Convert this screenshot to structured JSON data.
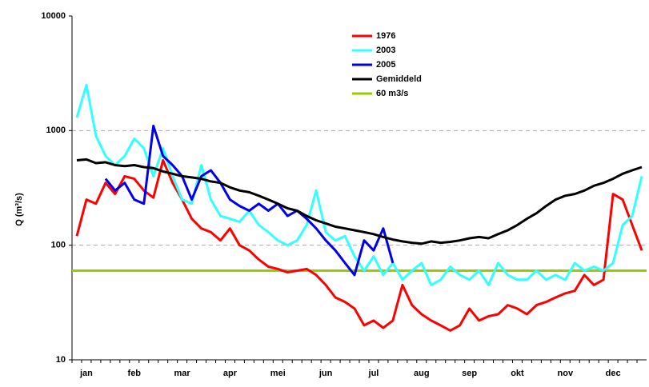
{
  "chart_data": {
    "type": "line",
    "y_label": "Q (m³/s)",
    "log_y": true,
    "ylim": [
      10,
      10000
    ],
    "yticks": [
      10,
      100,
      1000,
      10000
    ],
    "grid": true,
    "legend_position": "top",
    "categories": [
      null,
      "jan",
      null,
      null,
      null,
      null,
      "feb",
      null,
      null,
      null,
      null,
      "mar",
      null,
      null,
      null,
      null,
      "apr",
      null,
      null,
      null,
      null,
      "mei",
      null,
      null,
      null,
      null,
      "jun",
      null,
      null,
      null,
      null,
      "jul",
      null,
      null,
      null,
      null,
      "aug",
      null,
      null,
      null,
      null,
      "sep",
      null,
      null,
      null,
      null,
      "okt",
      null,
      null,
      null,
      null,
      "nov",
      null,
      null,
      null,
      null,
      "dec",
      null,
      null,
      null
    ],
    "series": [
      {
        "name": "1976",
        "color": "#ff0000",
        "values": [
          120,
          250,
          230,
          350,
          280,
          400,
          380,
          300,
          260,
          550,
          350,
          250,
          170,
          140,
          130,
          110,
          140,
          100,
          90,
          75,
          65,
          62,
          58,
          60,
          62,
          55,
          45,
          35,
          32,
          28,
          20,
          22,
          19,
          22,
          45,
          30,
          25,
          22,
          20,
          18,
          20,
          28,
          22,
          24,
          25,
          30,
          28,
          25,
          30,
          32,
          35,
          38,
          40,
          55,
          45,
          50,
          280,
          250,
          150,
          90
        ]
      },
      {
        "name": "2003",
        "color": "#33ffff",
        "values": [
          1300,
          2500,
          900,
          600,
          500,
          600,
          850,
          700,
          400,
          700,
          400,
          250,
          230,
          500,
          250,
          180,
          170,
          160,
          200,
          150,
          130,
          110,
          100,
          110,
          150,
          300,
          130,
          110,
          120,
          80,
          60,
          80,
          55,
          70,
          50,
          60,
          70,
          45,
          50,
          65,
          55,
          50,
          60,
          45,
          70,
          55,
          50,
          50,
          60,
          50,
          55,
          50,
          70,
          60,
          65,
          60,
          70,
          150,
          180,
          400
        ]
      },
      {
        "name": "2005",
        "color": "#0000ee",
        "values": [
          null,
          null,
          null,
          380,
          300,
          350,
          250,
          230,
          1100,
          600,
          500,
          400,
          250,
          400,
          450,
          350,
          250,
          220,
          200,
          230,
          200,
          230,
          180,
          200,
          170,
          140,
          110,
          90,
          70,
          55,
          110,
          90,
          140,
          70,
          null,
          null,
          null,
          null,
          null,
          null,
          null,
          null,
          null,
          null,
          null,
          null,
          null,
          null,
          null,
          null,
          null,
          null,
          null,
          null,
          null,
          null,
          null,
          null,
          null,
          null
        ]
      },
      {
        "name": "Gemiddeld",
        "color": "#000000",
        "values": [
          550,
          560,
          520,
          530,
          500,
          490,
          500,
          480,
          470,
          440,
          420,
          400,
          390,
          380,
          360,
          350,
          320,
          300,
          290,
          270,
          250,
          230,
          210,
          200,
          180,
          165,
          155,
          145,
          140,
          135,
          130,
          125,
          118,
          112,
          108,
          105,
          103,
          108,
          105,
          107,
          110,
          115,
          118,
          115,
          125,
          135,
          150,
          170,
          190,
          220,
          250,
          270,
          280,
          300,
          330,
          350,
          380,
          420,
          450,
          480
        ]
      }
    ],
    "reference_line": {
      "name": "60 m3/s",
      "value": 60,
      "color": "#99cc00"
    }
  }
}
